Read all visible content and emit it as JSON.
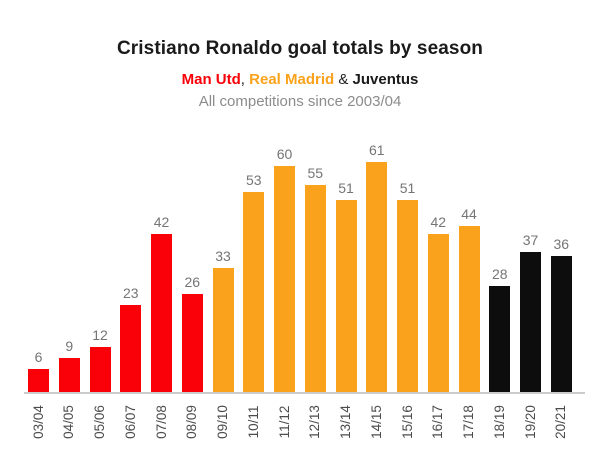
{
  "header": {
    "title": "Cristiano Ronaldo goal totals by season",
    "subtitle_parts": [
      {
        "text": "Man Utd",
        "color": "#fa0008",
        "bold": true,
        "name": "subtitle-team-man-utd"
      },
      {
        "text": ", ",
        "color": "#222222",
        "bold": false,
        "name": "subtitle-separator"
      },
      {
        "text": "Real Madrid",
        "color": "#faa21b",
        "bold": true,
        "name": "subtitle-team-real-madrid"
      },
      {
        "text": " & ",
        "color": "#222222",
        "bold": false,
        "name": "subtitle-ampersand"
      },
      {
        "text": "Juventus",
        "color": "#1a1a1a",
        "bold": true,
        "name": "subtitle-team-juventus"
      }
    ],
    "note": "All competitions since 2003/04"
  },
  "chart_data": {
    "type": "bar",
    "title": "Cristiano Ronaldo goal totals by season",
    "subtitle": "Man Utd, Real Madrid & Juventus",
    "note": "All competitions since 2003/04",
    "categories": [
      "03/04",
      "04/05",
      "05/06",
      "06/07",
      "07/08",
      "08/09",
      "09/10",
      "10/11",
      "11/12",
      "12/13",
      "13/14",
      "14/15",
      "15/16",
      "16/17",
      "17/18",
      "18/19",
      "19/20",
      "20/21"
    ],
    "values": [
      6,
      9,
      12,
      23,
      42,
      26,
      33,
      53,
      60,
      55,
      51,
      61,
      51,
      42,
      44,
      28,
      37,
      36
    ],
    "teams": [
      "Man Utd",
      "Man Utd",
      "Man Utd",
      "Man Utd",
      "Man Utd",
      "Man Utd",
      "Real Madrid",
      "Real Madrid",
      "Real Madrid",
      "Real Madrid",
      "Real Madrid",
      "Real Madrid",
      "Real Madrid",
      "Real Madrid",
      "Real Madrid",
      "Juventus",
      "Juventus",
      "Juventus"
    ],
    "series_colors": {
      "Man Utd": "#fa0008",
      "Real Madrid": "#faa21b",
      "Juventus": "#0d0d0d"
    },
    "ylim": [
      0,
      61
    ],
    "grid": false,
    "value_labels": true,
    "legend": "inline-subtitle",
    "xlabel": "",
    "ylabel": "",
    "axis_color": "#cccccc",
    "value_label_color": "#757575",
    "tick_label_color": "#4c4c4c"
  }
}
